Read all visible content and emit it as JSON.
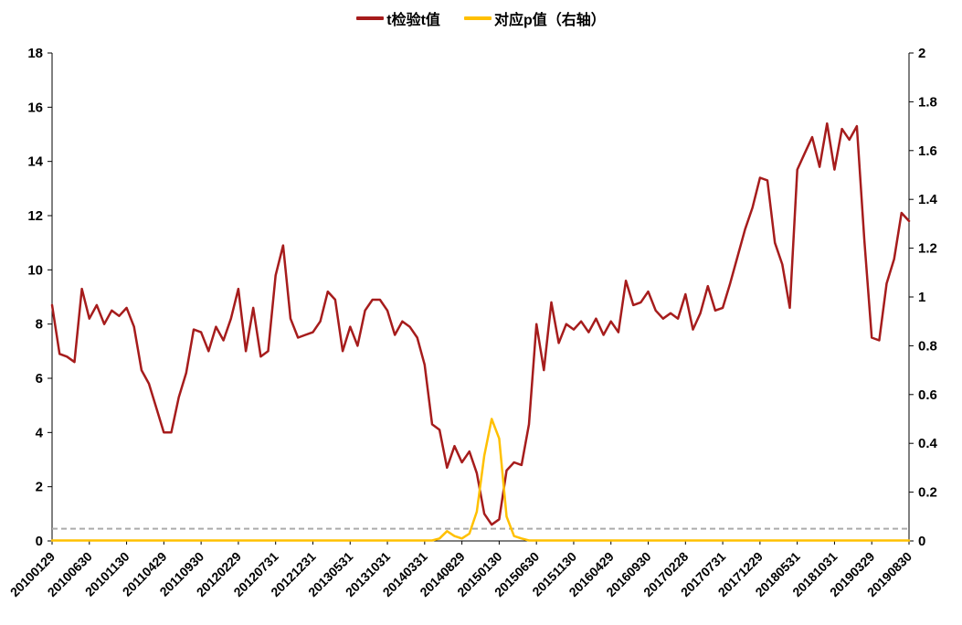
{
  "chart_data": {
    "type": "line",
    "title": "",
    "legend": [
      {
        "label": "t检验t值",
        "color": "#A61C1C"
      },
      {
        "label": "对应p值（右轴）",
        "color": "#FFC000"
      }
    ],
    "legend_position": "top-center",
    "grid": false,
    "left_axis": {
      "min": 0,
      "max": 18,
      "step": 2
    },
    "right_axis": {
      "min": 0,
      "max": 2,
      "step": 0.2
    },
    "threshold_line": {
      "axis": "right",
      "value": 0.05,
      "style": "dashed",
      "color": "#ABABAB"
    },
    "x_tick_labels": [
      "20100129",
      "20100630",
      "20101130",
      "20110429",
      "20110930",
      "20120229",
      "20120731",
      "20121231",
      "20130531",
      "20131031",
      "20140331",
      "20140829",
      "20150130",
      "20150630",
      "20151130",
      "20160429",
      "20160930",
      "20170228",
      "20170731",
      "20171229",
      "20180531",
      "20181031",
      "20190329",
      "20190830"
    ],
    "points_per_tick": 5,
    "n_points": 116,
    "series": [
      {
        "name": "t检验t值",
        "axis": "left",
        "color": "#A61C1C",
        "values": [
          8.7,
          6.9,
          6.8,
          6.6,
          9.3,
          8.2,
          8.7,
          8.0,
          8.5,
          8.3,
          8.6,
          7.9,
          6.3,
          5.8,
          4.9,
          4.0,
          4.0,
          5.3,
          6.2,
          7.8,
          7.7,
          7.0,
          7.9,
          7.4,
          8.2,
          9.3,
          7.0,
          8.6,
          6.8,
          7.0,
          9.8,
          10.9,
          8.2,
          7.5,
          7.6,
          7.7,
          8.1,
          9.2,
          8.9,
          7.0,
          7.9,
          7.2,
          8.5,
          8.9,
          8.9,
          8.5,
          7.6,
          8.1,
          7.9,
          7.5,
          6.5,
          4.3,
          4.1,
          2.7,
          3.5,
          2.9,
          3.3,
          2.5,
          1.0,
          0.6,
          0.8,
          2.6,
          2.9,
          2.8,
          4.3,
          8.0,
          6.3,
          8.8,
          7.3,
          8.0,
          7.8,
          8.1,
          7.7,
          8.2,
          7.6,
          8.1,
          7.7,
          9.6,
          8.7,
          8.8,
          9.2,
          8.5,
          8.2,
          8.4,
          8.2,
          9.1,
          7.8,
          8.4,
          9.4,
          8.5,
          8.6,
          9.5,
          10.5,
          11.5,
          12.3,
          13.4,
          13.3,
          11.0,
          10.2,
          8.6,
          13.7,
          14.3,
          14.9,
          13.8,
          15.4,
          13.7,
          15.2,
          14.8,
          15.3,
          11.1,
          7.5,
          7.4,
          9.5,
          10.4,
          12.1,
          11.8
        ]
      },
      {
        "name": "对应p值（右轴）",
        "axis": "right",
        "color": "#FFC000",
        "values": [
          0.002,
          0.002,
          0.002,
          0.002,
          0.002,
          0.002,
          0.002,
          0.002,
          0.002,
          0.002,
          0.002,
          0.002,
          0.002,
          0.002,
          0.002,
          0.002,
          0.002,
          0.002,
          0.002,
          0.002,
          0.002,
          0.002,
          0.002,
          0.002,
          0.002,
          0.002,
          0.002,
          0.002,
          0.002,
          0.002,
          0.002,
          0.002,
          0.002,
          0.002,
          0.002,
          0.002,
          0.002,
          0.002,
          0.002,
          0.002,
          0.002,
          0.002,
          0.002,
          0.002,
          0.002,
          0.002,
          0.002,
          0.002,
          0.002,
          0.002,
          0.002,
          0.002,
          0.01,
          0.04,
          0.02,
          0.01,
          0.03,
          0.12,
          0.35,
          0.5,
          0.42,
          0.1,
          0.02,
          0.01,
          0.002,
          0.002,
          0.002,
          0.002,
          0.002,
          0.002,
          0.002,
          0.002,
          0.002,
          0.002,
          0.002,
          0.002,
          0.002,
          0.002,
          0.002,
          0.002,
          0.002,
          0.002,
          0.002,
          0.002,
          0.002,
          0.002,
          0.002,
          0.002,
          0.002,
          0.002,
          0.002,
          0.002,
          0.002,
          0.002,
          0.002,
          0.002,
          0.002,
          0.002,
          0.002,
          0.002,
          0.002,
          0.002,
          0.002,
          0.002,
          0.002,
          0.002,
          0.002,
          0.002,
          0.002,
          0.002,
          0.002,
          0.002,
          0.002,
          0.002,
          0.002,
          0.002
        ]
      }
    ]
  }
}
